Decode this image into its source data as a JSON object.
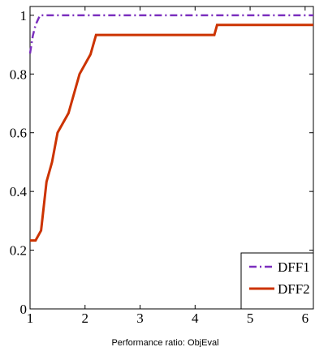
{
  "chart_data": {
    "type": "line",
    "xlabel": "Performance ratio: ObjEval",
    "ylabel": "",
    "xlim": [
      1,
      6.15
    ],
    "ylim": [
      0,
      1.03
    ],
    "x_ticks": [
      1,
      2,
      3,
      4,
      5,
      6
    ],
    "y_ticks": [
      0,
      0.2,
      0.4,
      0.6,
      0.8,
      1
    ],
    "grid": false,
    "legend_position": "bottom-right",
    "series": [
      {
        "name": "DFF1",
        "color": "#7b2fbe",
        "style": "dash-dot",
        "points": [
          [
            1.0,
            0.87
          ],
          [
            1.05,
            0.93
          ],
          [
            1.1,
            0.967
          ],
          [
            1.18,
            1.0
          ],
          [
            6.15,
            1.0
          ]
        ]
      },
      {
        "name": "DFF2",
        "color": "#cc3300",
        "style": "solid",
        "points": [
          [
            1.0,
            0.233
          ],
          [
            1.1,
            0.233
          ],
          [
            1.2,
            0.267
          ],
          [
            1.3,
            0.433
          ],
          [
            1.4,
            0.5
          ],
          [
            1.5,
            0.6
          ],
          [
            1.7,
            0.667
          ],
          [
            1.9,
            0.8
          ],
          [
            2.1,
            0.867
          ],
          [
            2.2,
            0.933
          ],
          [
            4.35,
            0.933
          ],
          [
            4.4,
            0.967
          ],
          [
            6.15,
            0.967
          ]
        ]
      }
    ]
  }
}
